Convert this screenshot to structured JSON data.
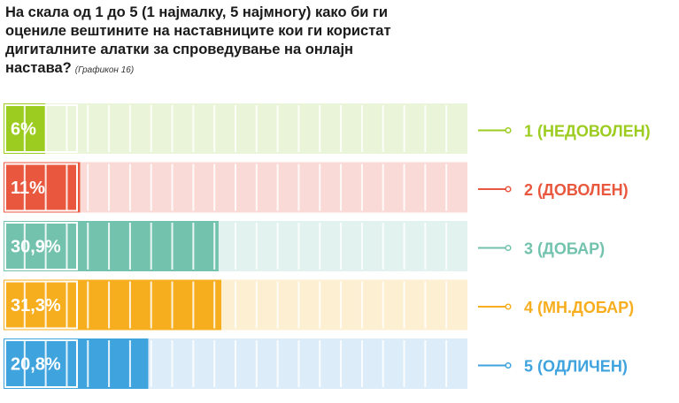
{
  "title": "На скала од 1 до 5 (1 најмалку, 5 најмногу) како би ги оцениле вештините на наставниците кои ги користат дигиталните алатки за спроведување на онлајн настава?",
  "title_note": "(Графикон 16)",
  "chart_data": {
    "type": "bar",
    "orientation": "horizontal",
    "categories": [
      "1 (НЕДОВОЛЕН)",
      "2 (ДОВОЛЕН)",
      "3 (ДОБАР)",
      "4 (МН.ДОБАР)",
      "5 (ОДЛИЧЕН)"
    ],
    "values": [
      6,
      11,
      30.9,
      31.3,
      20.8
    ],
    "value_labels": [
      "6%",
      "11%",
      "30,9%",
      "31,3%",
      "20,8%"
    ],
    "unit": "%",
    "xlim": [
      0,
      100
    ],
    "colors": [
      "#9ccc1f",
      "#e8573e",
      "#72c2ad",
      "#f7ae1e",
      "#3fa3de"
    ],
    "light_colors": [
      "#eaf4d9",
      "#f9dad6",
      "#e2f2ee",
      "#fdefd2",
      "#dcecf8"
    ],
    "legend_position": "right"
  }
}
